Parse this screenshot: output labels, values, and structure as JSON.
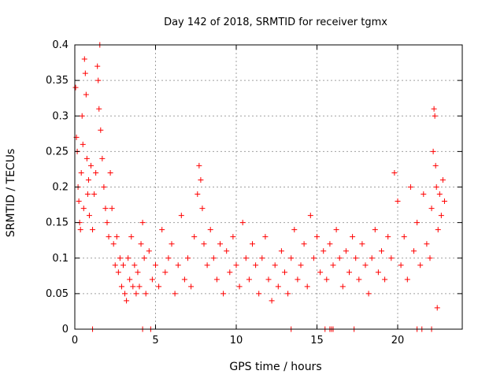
{
  "chart_data": {
    "type": "scatter",
    "title": "Day 142 of 2018, SRMTID for receiver tgmx",
    "xlabel": "GPS time / hours",
    "ylabel": "SRMTID / TECUs",
    "xlim": [
      0,
      24
    ],
    "ylim": [
      0,
      0.4
    ],
    "xticks": [
      0,
      5,
      10,
      15,
      20
    ],
    "xtick_labels": [
      "0",
      "5",
      "10",
      "15",
      "20"
    ],
    "yticks": [
      0,
      0.05,
      0.1,
      0.15,
      0.2,
      0.25,
      0.3,
      0.35,
      0.4
    ],
    "ytick_labels": [
      "0",
      "0.05",
      "0.1",
      "0.15",
      "0.2",
      "0.25",
      "0.3",
      "0.35",
      "0.4"
    ],
    "grid": true,
    "marker": "+",
    "color": "#ff0000",
    "series": [
      {
        "name": "SRMTID",
        "points": [
          [
            0.05,
            0.34
          ],
          [
            0.1,
            0.27
          ],
          [
            0.15,
            0.25
          ],
          [
            0.2,
            0.2
          ],
          [
            0.25,
            0.18
          ],
          [
            0.3,
            0.15
          ],
          [
            0.35,
            0.14
          ],
          [
            0.4,
            0.22
          ],
          [
            0.45,
            0.3
          ],
          [
            0.5,
            0.26
          ],
          [
            0.55,
            0.17
          ],
          [
            0.6,
            0.38
          ],
          [
            0.65,
            0.36
          ],
          [
            0.7,
            0.33
          ],
          [
            0.75,
            0.24
          ],
          [
            0.8,
            0.19
          ],
          [
            0.85,
            0.21
          ],
          [
            0.9,
            0.16
          ],
          [
            1.0,
            0.23
          ],
          [
            1.1,
            0.14
          ],
          [
            1.2,
            0.19
          ],
          [
            1.3,
            0.22
          ],
          [
            1.4,
            0.37
          ],
          [
            1.45,
            0.35
          ],
          [
            1.5,
            0.31
          ],
          [
            1.55,
            0.4
          ],
          [
            1.6,
            0.28
          ],
          [
            1.7,
            0.24
          ],
          [
            1.8,
            0.2
          ],
          [
            1.9,
            0.17
          ],
          [
            2.0,
            0.15
          ],
          [
            2.1,
            0.13
          ],
          [
            2.2,
            0.22
          ],
          [
            2.3,
            0.17
          ],
          [
            2.4,
            0.12
          ],
          [
            2.5,
            0.09
          ],
          [
            2.6,
            0.13
          ],
          [
            2.7,
            0.08
          ],
          [
            2.8,
            0.1
          ],
          [
            2.9,
            0.06
          ],
          [
            3.0,
            0.09
          ],
          [
            3.1,
            0.05
          ],
          [
            3.2,
            0.04
          ],
          [
            3.3,
            0.1
          ],
          [
            3.4,
            0.07
          ],
          [
            3.5,
            0.13
          ],
          [
            3.6,
            0.06
          ],
          [
            3.7,
            0.09
          ],
          [
            3.8,
            0.05
          ],
          [
            3.9,
            0.08
          ],
          [
            4.0,
            0.06
          ],
          [
            4.1,
            0.12
          ],
          [
            4.2,
            0.15
          ],
          [
            4.3,
            0.1
          ],
          [
            4.4,
            0.05
          ],
          [
            4.6,
            0.11
          ],
          [
            4.8,
            0.07
          ],
          [
            5.0,
            0.09
          ],
          [
            5.2,
            0.06
          ],
          [
            5.4,
            0.14
          ],
          [
            5.6,
            0.08
          ],
          [
            5.8,
            0.1
          ],
          [
            6.0,
            0.12
          ],
          [
            6.2,
            0.05
          ],
          [
            6.4,
            0.09
          ],
          [
            6.6,
            0.16
          ],
          [
            6.8,
            0.07
          ],
          [
            7.0,
            0.1
          ],
          [
            7.2,
            0.06
          ],
          [
            7.4,
            0.13
          ],
          [
            7.6,
            0.19
          ],
          [
            7.7,
            0.23
          ],
          [
            7.8,
            0.21
          ],
          [
            7.9,
            0.17
          ],
          [
            8.0,
            0.12
          ],
          [
            8.2,
            0.09
          ],
          [
            8.4,
            0.14
          ],
          [
            8.6,
            0.1
          ],
          [
            8.8,
            0.07
          ],
          [
            9.0,
            0.12
          ],
          [
            9.2,
            0.05
          ],
          [
            9.4,
            0.11
          ],
          [
            9.6,
            0.08
          ],
          [
            9.8,
            0.13
          ],
          [
            10.0,
            0.09
          ],
          [
            10.2,
            0.06
          ],
          [
            10.4,
            0.15
          ],
          [
            10.6,
            0.1
          ],
          [
            10.8,
            0.07
          ],
          [
            11.0,
            0.12
          ],
          [
            11.2,
            0.09
          ],
          [
            11.4,
            0.05
          ],
          [
            11.6,
            0.1
          ],
          [
            11.8,
            0.13
          ],
          [
            12.0,
            0.07
          ],
          [
            12.2,
            0.04
          ],
          [
            12.4,
            0.09
          ],
          [
            12.6,
            0.06
          ],
          [
            12.8,
            0.11
          ],
          [
            13.0,
            0.08
          ],
          [
            13.2,
            0.05
          ],
          [
            13.4,
            0.1
          ],
          [
            13.6,
            0.14
          ],
          [
            13.8,
            0.07
          ],
          [
            14.0,
            0.09
          ],
          [
            14.2,
            0.12
          ],
          [
            14.4,
            0.06
          ],
          [
            14.6,
            0.16
          ],
          [
            14.8,
            0.1
          ],
          [
            15.0,
            0.13
          ],
          [
            15.2,
            0.08
          ],
          [
            15.4,
            0.11
          ],
          [
            15.6,
            0.07
          ],
          [
            15.8,
            0.12
          ],
          [
            16.0,
            0.09
          ],
          [
            16.2,
            0.14
          ],
          [
            16.4,
            0.1
          ],
          [
            16.6,
            0.06
          ],
          [
            16.8,
            0.11
          ],
          [
            17.0,
            0.08
          ],
          [
            17.2,
            0.13
          ],
          [
            17.4,
            0.1
          ],
          [
            17.6,
            0.07
          ],
          [
            17.8,
            0.12
          ],
          [
            18.0,
            0.09
          ],
          [
            18.2,
            0.05
          ],
          [
            18.4,
            0.1
          ],
          [
            18.6,
            0.14
          ],
          [
            18.8,
            0.08
          ],
          [
            19.0,
            0.11
          ],
          [
            19.2,
            0.07
          ],
          [
            19.4,
            0.13
          ],
          [
            19.6,
            0.1
          ],
          [
            19.8,
            0.22
          ],
          [
            20.0,
            0.18
          ],
          [
            20.2,
            0.09
          ],
          [
            20.4,
            0.13
          ],
          [
            20.6,
            0.07
          ],
          [
            20.8,
            0.2
          ],
          [
            21.0,
            0.11
          ],
          [
            21.2,
            0.15
          ],
          [
            21.4,
            0.09
          ],
          [
            21.6,
            0.19
          ],
          [
            21.8,
            0.12
          ],
          [
            22.0,
            0.1
          ],
          [
            22.1,
            0.17
          ],
          [
            22.2,
            0.25
          ],
          [
            22.25,
            0.31
          ],
          [
            22.3,
            0.3
          ],
          [
            22.35,
            0.23
          ],
          [
            22.4,
            0.2
          ],
          [
            22.5,
            0.14
          ],
          [
            22.6,
            0.19
          ],
          [
            22.7,
            0.16
          ],
          [
            22.8,
            0.21
          ],
          [
            22.9,
            0.18
          ],
          [
            22.45,
            0.03
          ]
        ]
      },
      {
        "name": "zero markers",
        "points": [
          [
            1.1,
            0
          ],
          [
            4.2,
            0
          ],
          [
            4.7,
            0
          ],
          [
            13.4,
            0
          ],
          [
            15.5,
            0
          ],
          [
            15.8,
            0
          ],
          [
            15.9,
            0
          ],
          [
            16.0,
            0
          ],
          [
            17.3,
            0
          ],
          [
            21.2,
            0
          ],
          [
            21.5,
            0
          ],
          [
            22.1,
            0
          ]
        ]
      }
    ]
  }
}
